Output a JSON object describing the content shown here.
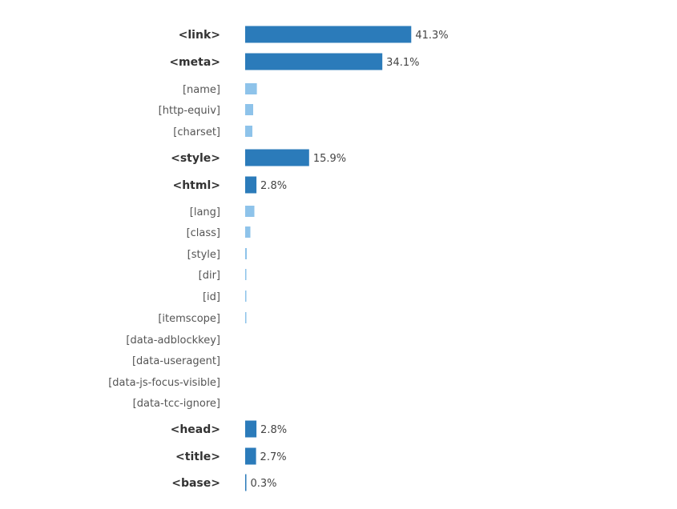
{
  "chart_data": {
    "type": "bar",
    "orientation": "horizontal",
    "unit": "%",
    "colors": {
      "main": "#2b7bba",
      "sub": "#8ec3ea"
    },
    "rows": [
      {
        "label": "<link>",
        "kind": "main",
        "value": 41.3,
        "value_label": "41.3%"
      },
      {
        "label": "<meta>",
        "kind": "main",
        "value": 34.1,
        "value_label": "34.1%"
      },
      {
        "label": "[name]",
        "kind": "sub",
        "value": 2.9
      },
      {
        "label": "[http-equiv]",
        "kind": "sub",
        "value": 2.0
      },
      {
        "label": "[charset]",
        "kind": "sub",
        "value": 1.8
      },
      {
        "label": "<style>",
        "kind": "main",
        "value": 15.9,
        "value_label": "15.9%"
      },
      {
        "label": "<html>",
        "kind": "main",
        "value": 2.8,
        "value_label": "2.8%"
      },
      {
        "label": "[lang]",
        "kind": "sub",
        "value": 2.3
      },
      {
        "label": "[class]",
        "kind": "sub",
        "value": 1.3
      },
      {
        "label": "[style]",
        "kind": "sub",
        "value": 0.4
      },
      {
        "label": "[dir]",
        "kind": "sub",
        "value": 0.2
      },
      {
        "label": "[id]",
        "kind": "sub",
        "value": 0.2
      },
      {
        "label": "[itemscope]",
        "kind": "sub",
        "value": 0.2
      },
      {
        "label": "[data-adblockkey]",
        "kind": "sub",
        "value": 0
      },
      {
        "label": "[data-useragent]",
        "kind": "sub",
        "value": 0
      },
      {
        "label": "[data-js-focus-visible]",
        "kind": "sub",
        "value": 0
      },
      {
        "label": "[data-tcc-ignore]",
        "kind": "sub",
        "value": 0
      },
      {
        "label": "<head>",
        "kind": "main",
        "value": 2.8,
        "value_label": "2.8%"
      },
      {
        "label": "<title>",
        "kind": "main",
        "value": 2.7,
        "value_label": "2.7%"
      },
      {
        "label": "<base>",
        "kind": "main",
        "value": 0.3,
        "value_label": "0.3%"
      }
    ]
  }
}
